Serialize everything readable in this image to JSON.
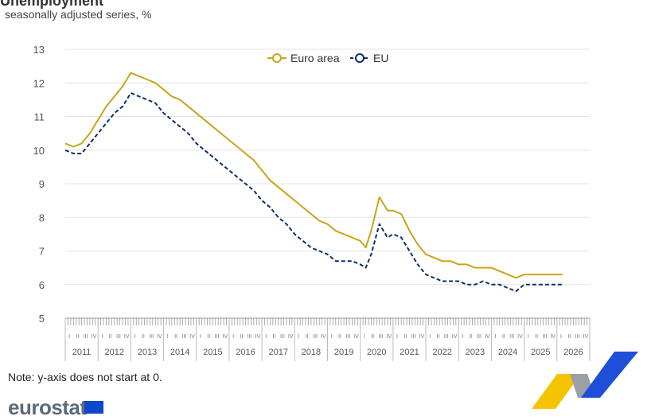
{
  "header": {
    "subtitle": "seasonally adjusted series, %"
  },
  "footer": {
    "note": "Note: y-axis does not start at 0.",
    "logo_text": "eurostat"
  },
  "colors": {
    "euro_area": "#c9a51a",
    "eu": "#0c2f6b",
    "grid": "#e3e3e3",
    "logo_blue": "#1f4fd8",
    "logo_yellow": "#f5c400",
    "logo_grey": "#9aa0a6"
  },
  "chart_data": {
    "type": "line",
    "title": "",
    "xlabel": "",
    "ylabel": "",
    "ylim": [
      5,
      13
    ],
    "yticks": [
      5,
      6,
      7,
      8,
      9,
      10,
      11,
      12,
      13
    ],
    "grid": true,
    "legend_position": "top-center",
    "quarter_labels": [
      "I",
      "II",
      "III",
      "IV"
    ],
    "years": [
      "2011",
      "2012",
      "2013",
      "2014",
      "2015",
      "2016",
      "2017",
      "2018",
      "2019",
      "2020",
      "2021",
      "2022",
      "2023",
      "2024",
      "2025",
      "2026"
    ],
    "series": [
      {
        "name": "Euro area",
        "color": "#c9a51a",
        "style": "solid",
        "points": [
          [
            "2011-01",
            10.2
          ],
          [
            "2011-04",
            10.1
          ],
          [
            "2011-07",
            10.2
          ],
          [
            "2011-10",
            10.5
          ],
          [
            "2012-01",
            10.9
          ],
          [
            "2012-04",
            11.3
          ],
          [
            "2012-07",
            11.6
          ],
          [
            "2012-10",
            11.9
          ],
          [
            "2013-01",
            12.3
          ],
          [
            "2013-04",
            12.2
          ],
          [
            "2013-07",
            12.1
          ],
          [
            "2013-10",
            12.0
          ],
          [
            "2014-01",
            11.8
          ],
          [
            "2014-04",
            11.6
          ],
          [
            "2014-07",
            11.5
          ],
          [
            "2014-10",
            11.3
          ],
          [
            "2015-01",
            11.1
          ],
          [
            "2015-04",
            10.9
          ],
          [
            "2015-07",
            10.7
          ],
          [
            "2015-10",
            10.5
          ],
          [
            "2016-01",
            10.3
          ],
          [
            "2016-04",
            10.1
          ],
          [
            "2016-07",
            9.9
          ],
          [
            "2016-10",
            9.7
          ],
          [
            "2017-01",
            9.4
          ],
          [
            "2017-04",
            9.1
          ],
          [
            "2017-07",
            8.9
          ],
          [
            "2017-10",
            8.7
          ],
          [
            "2018-01",
            8.5
          ],
          [
            "2018-04",
            8.3
          ],
          [
            "2018-07",
            8.1
          ],
          [
            "2018-10",
            7.9
          ],
          [
            "2019-01",
            7.8
          ],
          [
            "2019-04",
            7.6
          ],
          [
            "2019-07",
            7.5
          ],
          [
            "2019-10",
            7.4
          ],
          [
            "2020-01",
            7.3
          ],
          [
            "2020-03",
            7.1
          ],
          [
            "2020-05",
            7.6
          ],
          [
            "2020-08",
            8.6
          ],
          [
            "2020-11",
            8.2
          ],
          [
            "2021-01",
            8.2
          ],
          [
            "2021-04",
            8.1
          ],
          [
            "2021-07",
            7.6
          ],
          [
            "2021-10",
            7.2
          ],
          [
            "2022-01",
            6.9
          ],
          [
            "2022-04",
            6.8
          ],
          [
            "2022-07",
            6.7
          ],
          [
            "2022-10",
            6.7
          ],
          [
            "2023-01",
            6.6
          ],
          [
            "2023-04",
            6.6
          ],
          [
            "2023-07",
            6.5
          ],
          [
            "2023-10",
            6.5
          ],
          [
            "2024-01",
            6.5
          ],
          [
            "2024-04",
            6.4
          ],
          [
            "2024-07",
            6.3
          ],
          [
            "2024-10",
            6.2
          ],
          [
            "2025-01",
            6.3
          ],
          [
            "2025-04",
            6.3
          ],
          [
            "2025-07",
            6.3
          ],
          [
            "2025-10",
            6.3
          ],
          [
            "2026-01",
            6.3
          ],
          [
            "2026-03",
            6.3
          ]
        ]
      },
      {
        "name": "EU",
        "color": "#0c2f6b",
        "style": "dashed",
        "points": [
          [
            "2011-01",
            10.0
          ],
          [
            "2011-04",
            9.9
          ],
          [
            "2011-07",
            9.9
          ],
          [
            "2011-10",
            10.2
          ],
          [
            "2012-01",
            10.5
          ],
          [
            "2012-04",
            10.8
          ],
          [
            "2012-07",
            11.1
          ],
          [
            "2012-10",
            11.3
          ],
          [
            "2013-01",
            11.7
          ],
          [
            "2013-04",
            11.6
          ],
          [
            "2013-07",
            11.5
          ],
          [
            "2013-10",
            11.4
          ],
          [
            "2014-01",
            11.1
          ],
          [
            "2014-04",
            10.9
          ],
          [
            "2014-07",
            10.7
          ],
          [
            "2014-10",
            10.5
          ],
          [
            "2015-01",
            10.2
          ],
          [
            "2015-04",
            10.0
          ],
          [
            "2015-07",
            9.8
          ],
          [
            "2015-10",
            9.6
          ],
          [
            "2016-01",
            9.4
          ],
          [
            "2016-04",
            9.2
          ],
          [
            "2016-07",
            9.0
          ],
          [
            "2016-10",
            8.8
          ],
          [
            "2017-01",
            8.5
          ],
          [
            "2017-04",
            8.3
          ],
          [
            "2017-07",
            8.0
          ],
          [
            "2017-10",
            7.8
          ],
          [
            "2018-01",
            7.5
          ],
          [
            "2018-04",
            7.3
          ],
          [
            "2018-07",
            7.1
          ],
          [
            "2018-10",
            7.0
          ],
          [
            "2019-01",
            6.9
          ],
          [
            "2019-04",
            6.7
          ],
          [
            "2019-07",
            6.7
          ],
          [
            "2019-10",
            6.7
          ],
          [
            "2020-01",
            6.6
          ],
          [
            "2020-03",
            6.5
          ],
          [
            "2020-05",
            6.9
          ],
          [
            "2020-08",
            7.8
          ],
          [
            "2020-11",
            7.4
          ],
          [
            "2021-01",
            7.5
          ],
          [
            "2021-04",
            7.4
          ],
          [
            "2021-07",
            7.0
          ],
          [
            "2021-10",
            6.6
          ],
          [
            "2022-01",
            6.3
          ],
          [
            "2022-04",
            6.2
          ],
          [
            "2022-07",
            6.1
          ],
          [
            "2022-10",
            6.1
          ],
          [
            "2023-01",
            6.1
          ],
          [
            "2023-04",
            6.0
          ],
          [
            "2023-07",
            6.0
          ],
          [
            "2023-10",
            6.1
          ],
          [
            "2024-01",
            6.0
          ],
          [
            "2024-04",
            6.0
          ],
          [
            "2024-07",
            5.9
          ],
          [
            "2024-10",
            5.8
          ],
          [
            "2025-01",
            6.0
          ],
          [
            "2025-04",
            6.0
          ],
          [
            "2025-07",
            6.0
          ],
          [
            "2025-10",
            6.0
          ],
          [
            "2026-01",
            6.0
          ],
          [
            "2026-03",
            6.0
          ]
        ]
      }
    ]
  }
}
